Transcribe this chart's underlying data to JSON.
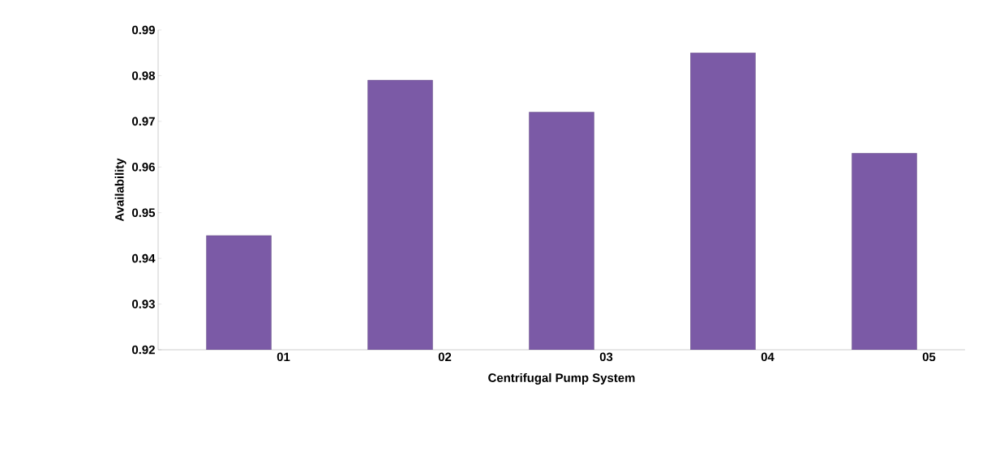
{
  "chart_data": {
    "type": "bar",
    "xlabel": "Centrifugal Pump System",
    "ylabel": "Availability",
    "categories": [
      "01",
      "02",
      "03",
      "04",
      "05"
    ],
    "values": [
      0.945,
      0.979,
      0.972,
      0.985,
      0.963
    ],
    "color": "#7b5aa6",
    "ylim": [
      0.92,
      0.99
    ],
    "yticks": [
      0.92,
      0.93,
      0.94,
      0.95,
      0.96,
      0.97,
      0.98,
      0.99
    ]
  }
}
